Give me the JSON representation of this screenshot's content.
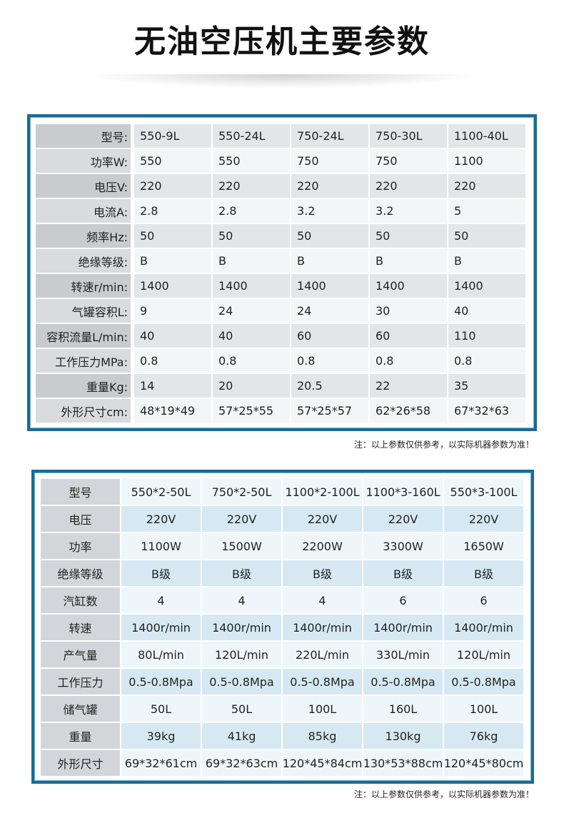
{
  "title": "无油空压机主要参数",
  "table1": {
    "rows": [
      [
        "型号:",
        "550-9L",
        "550-24L",
        "750-24L",
        "750-30L",
        "1100-40L"
      ],
      [
        "功率W:",
        "550",
        "550",
        "750",
        "750",
        "1100"
      ],
      [
        "电压V:",
        "220",
        "220",
        "220",
        "220",
        "220"
      ],
      [
        "电流A:",
        "2.8",
        "2.8",
        "3.2",
        "3.2",
        "5"
      ],
      [
        "频率Hz:",
        "50",
        "50",
        "50",
        "50",
        "50"
      ],
      [
        "绝缘等级:",
        "B",
        "B",
        "B",
        "B",
        "B"
      ],
      [
        "转速r/min:",
        "1400",
        "1400",
        "1400",
        "1400",
        "1400"
      ],
      [
        "气罐容积L:",
        "9",
        "24",
        "24",
        "30",
        "40"
      ],
      [
        "容积流量L/min:",
        "40",
        "40",
        "60",
        "60",
        "110"
      ],
      [
        "工作压力MPa:",
        "0.8",
        "0.8",
        "0.8",
        "0.8",
        "0.8"
      ],
      [
        "重量Kg:",
        "14",
        "20",
        "20.5",
        "22",
        "35"
      ],
      [
        "外形尺寸cm:",
        "48*19*49",
        "57*25*55",
        "57*25*57",
        "62*26*58",
        "67*32*63"
      ]
    ]
  },
  "note1": "注：以上参数仅供参考，以实际机器参数为准！",
  "table2": {
    "rows": [
      [
        "型号",
        "550*2-50L",
        "750*2-50L",
        "1100*2-100L",
        "1100*3-160L",
        "550*3-100L"
      ],
      [
        "电压",
        "220V",
        "220V",
        "220V",
        "220V",
        "220V"
      ],
      [
        "功率",
        "1100W",
        "1500W",
        "2200W",
        "3300W",
        "1650W"
      ],
      [
        "绝缘等级",
        "B级",
        "B级",
        "B级",
        "B级",
        "B级"
      ],
      [
        "汽缸数",
        "4",
        "4",
        "4",
        "6",
        "6"
      ],
      [
        "转速",
        "1400r/min",
        "1400r/min",
        "1400r/min",
        "1400r/min",
        "1400r/min"
      ],
      [
        "产气量",
        "80L/min",
        "120L/min",
        "220L/min",
        "330L/min",
        "120L/min"
      ],
      [
        "工作压力",
        "0.5-0.8Mpa",
        "0.5-0.8Mpa",
        "0.5-0.8Mpa",
        "0.5-0.8Mpa",
        "0.5-0.8Mpa"
      ],
      [
        "储气罐",
        "50L",
        "50L",
        "100L",
        "160L",
        "100L"
      ],
      [
        "重量",
        "39kg",
        "41kg",
        "85kg",
        "130kg",
        "76kg"
      ],
      [
        "外形尺寸",
        "69*32*61cm",
        "69*32*63cm",
        "120*45*84cm",
        "130*53*88cm",
        "120*45*80cm"
      ]
    ]
  },
  "note2": "注：以上参数仅供参考，以实际机器参数为准！"
}
